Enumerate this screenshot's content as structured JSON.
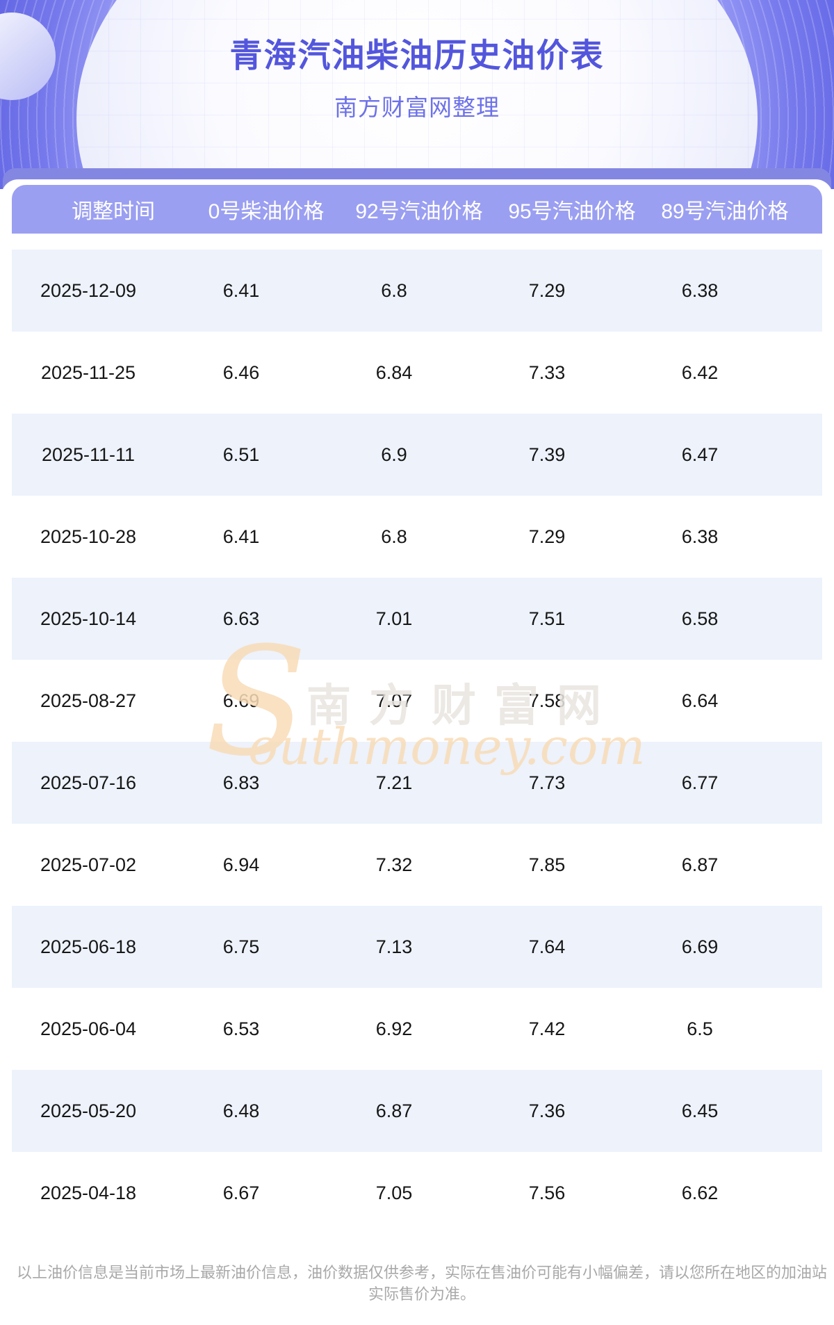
{
  "header": {
    "title": "青海汽油柴油历史油价表",
    "subtitle": "南方财富网整理"
  },
  "table": {
    "columns": [
      "调整时间",
      "0号柴油价格",
      "92号汽油价格",
      "95号汽油价格",
      "89号汽油价格"
    ],
    "rows": [
      [
        "2025-12-09",
        "6.41",
        "6.8",
        "7.29",
        "6.38"
      ],
      [
        "2025-11-25",
        "6.46",
        "6.84",
        "7.33",
        "6.42"
      ],
      [
        "2025-11-11",
        "6.51",
        "6.9",
        "7.39",
        "6.47"
      ],
      [
        "2025-10-28",
        "6.41",
        "6.8",
        "7.29",
        "6.38"
      ],
      [
        "2025-10-14",
        "6.63",
        "7.01",
        "7.51",
        "6.58"
      ],
      [
        "2025-08-27",
        "6.69",
        "7.07",
        "7.58",
        "6.64"
      ],
      [
        "2025-07-16",
        "6.83",
        "7.21",
        "7.73",
        "6.77"
      ],
      [
        "2025-07-02",
        "6.94",
        "7.32",
        "7.85",
        "6.87"
      ],
      [
        "2025-06-18",
        "6.75",
        "7.13",
        "7.64",
        "6.69"
      ],
      [
        "2025-06-04",
        "6.53",
        "6.92",
        "7.42",
        "6.5"
      ],
      [
        "2025-05-20",
        "6.48",
        "6.87",
        "7.36",
        "6.45"
      ],
      [
        "2025-04-18",
        "6.67",
        "7.05",
        "7.56",
        "6.62"
      ]
    ]
  },
  "watermark": {
    "initial": "S",
    "cn": "南方财富网",
    "en": "outhmoney.com"
  },
  "footer": {
    "disclaimer": "以上油价信息是当前市场上最新油价信息，油价数据仅供参考，实际在售油价可能有小幅偏差，请以您所在地区的加油站实际售价为准。"
  },
  "colors": {
    "hero_bg": "#6266ee",
    "band_bg": "#8487e2",
    "table_header_bg": "#9b9ff1",
    "row_alt_bg": "#edf2fb",
    "title_color": "#5356dc",
    "subtitle_color": "#6d71e8",
    "data_text": "#161616",
    "watermark_orange": "#f8dcb8",
    "watermark_gray": "#e9e5e0",
    "footer_text": "#a8a8a8"
  }
}
